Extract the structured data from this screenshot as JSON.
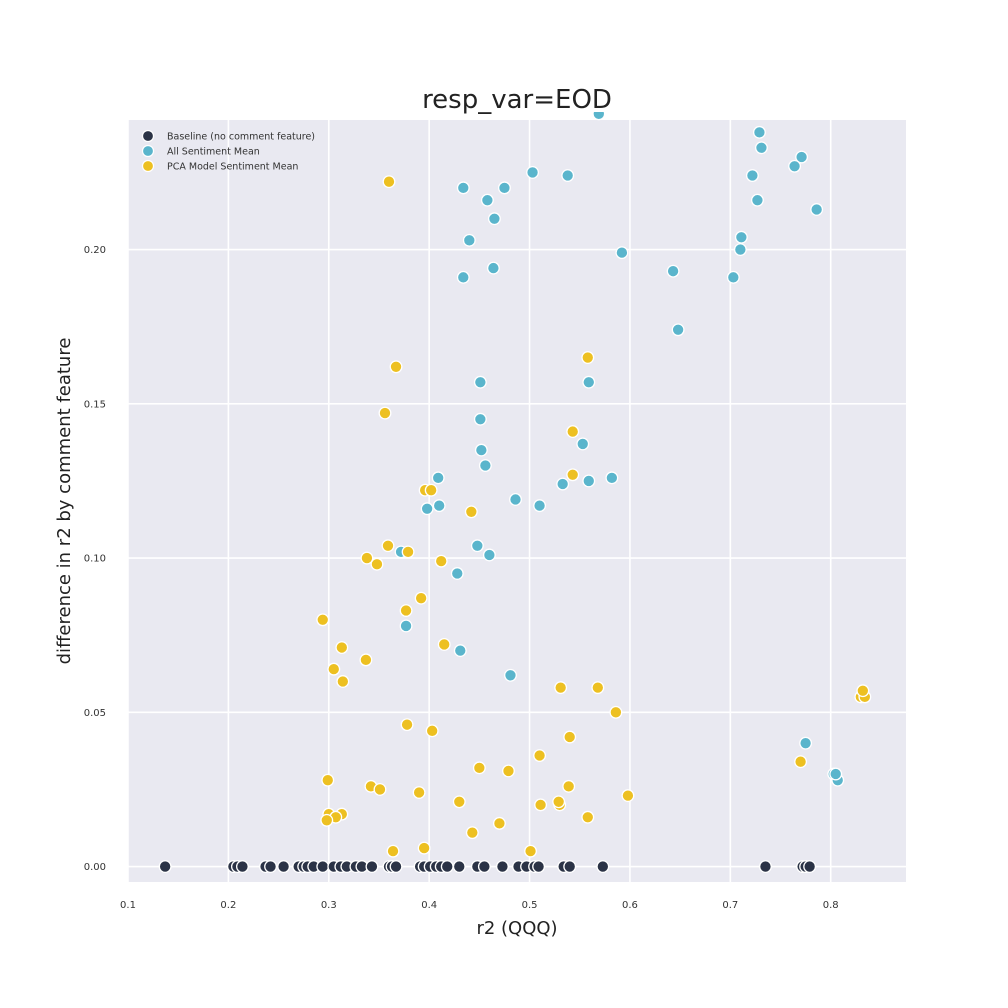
{
  "chart_data": {
    "type": "scatter",
    "title": "resp_var=EOD",
    "xlabel": "r2 (QQQ)",
    "ylabel": "difference in r2 by comment feature",
    "xlim": [
      0.1,
      0.875
    ],
    "ylim": [
      -0.005,
      0.242
    ],
    "xticks": [
      "0.1",
      "0.2",
      "0.3",
      "0.4",
      "0.5",
      "0.6",
      "0.7",
      "0.8"
    ],
    "xtick_values": [
      0.1,
      0.2,
      0.3,
      0.4,
      0.5,
      0.6,
      0.7,
      0.8
    ],
    "yticks": [
      "0.00",
      "0.05",
      "0.10",
      "0.15",
      "0.20"
    ],
    "ytick_values": [
      0.0,
      0.05,
      0.1,
      0.15,
      0.2
    ],
    "grid": true,
    "legend_position": "top-left",
    "background": "#e9e9f1",
    "series": [
      {
        "name": "Baseline (no comment feature)",
        "color": "#2b3346",
        "points": [
          [
            0.137,
            0
          ],
          [
            0.205,
            0
          ],
          [
            0.209,
            0
          ],
          [
            0.214,
            0
          ],
          [
            0.237,
            0
          ],
          [
            0.242,
            0
          ],
          [
            0.255,
            0
          ],
          [
            0.27,
            0
          ],
          [
            0.275,
            0
          ],
          [
            0.279,
            0
          ],
          [
            0.285,
            0
          ],
          [
            0.294,
            0
          ],
          [
            0.305,
            0
          ],
          [
            0.312,
            0
          ],
          [
            0.318,
            0
          ],
          [
            0.327,
            0
          ],
          [
            0.333,
            0
          ],
          [
            0.343,
            0
          ],
          [
            0.36,
            0
          ],
          [
            0.363,
            0
          ],
          [
            0.367,
            0
          ],
          [
            0.391,
            0
          ],
          [
            0.395,
            0
          ],
          [
            0.401,
            0
          ],
          [
            0.407,
            0
          ],
          [
            0.412,
            0
          ],
          [
            0.418,
            0
          ],
          [
            0.43,
            0
          ],
          [
            0.448,
            0
          ],
          [
            0.455,
            0
          ],
          [
            0.473,
            0
          ],
          [
            0.489,
            0
          ],
          [
            0.497,
            0
          ],
          [
            0.505,
            0
          ],
          [
            0.509,
            0
          ],
          [
            0.534,
            0
          ],
          [
            0.54,
            0
          ],
          [
            0.573,
            0
          ],
          [
            0.735,
            0
          ],
          [
            0.772,
            0
          ],
          [
            0.775,
            0
          ],
          [
            0.779,
            0
          ]
        ]
      },
      {
        "name": "All Sentiment Mean",
        "color": "#5ab5cc",
        "points": [
          [
            0.569,
            0.244
          ],
          [
            0.729,
            0.238
          ],
          [
            0.731,
            0.233
          ],
          [
            0.771,
            0.23
          ],
          [
            0.764,
            0.227
          ],
          [
            0.722,
            0.224
          ],
          [
            0.727,
            0.216
          ],
          [
            0.786,
            0.213
          ],
          [
            0.503,
            0.225
          ],
          [
            0.538,
            0.224
          ],
          [
            0.434,
            0.22
          ],
          [
            0.475,
            0.22
          ],
          [
            0.458,
            0.216
          ],
          [
            0.465,
            0.21
          ],
          [
            0.44,
            0.203
          ],
          [
            0.592,
            0.199
          ],
          [
            0.711,
            0.204
          ],
          [
            0.71,
            0.2
          ],
          [
            0.643,
            0.193
          ],
          [
            0.703,
            0.191
          ],
          [
            0.464,
            0.194
          ],
          [
            0.434,
            0.191
          ],
          [
            0.648,
            0.174
          ],
          [
            0.451,
            0.157
          ],
          [
            0.559,
            0.157
          ],
          [
            0.451,
            0.145
          ],
          [
            0.553,
            0.137
          ],
          [
            0.452,
            0.135
          ],
          [
            0.456,
            0.13
          ],
          [
            0.409,
            0.126
          ],
          [
            0.559,
            0.125
          ],
          [
            0.582,
            0.126
          ],
          [
            0.533,
            0.124
          ],
          [
            0.41,
            0.117
          ],
          [
            0.398,
            0.116
          ],
          [
            0.486,
            0.119
          ],
          [
            0.51,
            0.117
          ],
          [
            0.448,
            0.104
          ],
          [
            0.46,
            0.101
          ],
          [
            0.372,
            0.102
          ],
          [
            0.428,
            0.095
          ],
          [
            0.377,
            0.078
          ],
          [
            0.431,
            0.07
          ],
          [
            0.481,
            0.062
          ],
          [
            0.775,
            0.04
          ],
          [
            0.803,
            0.03
          ],
          [
            0.807,
            0.028
          ],
          [
            0.805,
            0.03
          ]
        ]
      },
      {
        "name": "PCA Model Sentiment Mean",
        "color": "#edc021",
        "points": [
          [
            0.36,
            0.222
          ],
          [
            0.558,
            0.165
          ],
          [
            0.367,
            0.162
          ],
          [
            0.356,
            0.147
          ],
          [
            0.543,
            0.141
          ],
          [
            0.543,
            0.127
          ],
          [
            0.396,
            0.122
          ],
          [
            0.402,
            0.122
          ],
          [
            0.442,
            0.115
          ],
          [
            0.359,
            0.104
          ],
          [
            0.379,
            0.102
          ],
          [
            0.338,
            0.1
          ],
          [
            0.348,
            0.098
          ],
          [
            0.412,
            0.099
          ],
          [
            0.392,
            0.087
          ],
          [
            0.377,
            0.083
          ],
          [
            0.294,
            0.08
          ],
          [
            0.415,
            0.072
          ],
          [
            0.313,
            0.071
          ],
          [
            0.337,
            0.067
          ],
          [
            0.305,
            0.064
          ],
          [
            0.314,
            0.06
          ],
          [
            0.531,
            0.058
          ],
          [
            0.568,
            0.058
          ],
          [
            0.83,
            0.055
          ],
          [
            0.834,
            0.055
          ],
          [
            0.832,
            0.057
          ],
          [
            0.586,
            0.05
          ],
          [
            0.378,
            0.046
          ],
          [
            0.403,
            0.044
          ],
          [
            0.54,
            0.042
          ],
          [
            0.51,
            0.036
          ],
          [
            0.77,
            0.034
          ],
          [
            0.45,
            0.032
          ],
          [
            0.479,
            0.031
          ],
          [
            0.299,
            0.028
          ],
          [
            0.342,
            0.026
          ],
          [
            0.539,
            0.026
          ],
          [
            0.351,
            0.025
          ],
          [
            0.39,
            0.024
          ],
          [
            0.598,
            0.023
          ],
          [
            0.43,
            0.021
          ],
          [
            0.511,
            0.02
          ],
          [
            0.53,
            0.02
          ],
          [
            0.529,
            0.021
          ],
          [
            0.3,
            0.017
          ],
          [
            0.313,
            0.017
          ],
          [
            0.307,
            0.016
          ],
          [
            0.558,
            0.016
          ],
          [
            0.298,
            0.015
          ],
          [
            0.47,
            0.014
          ],
          [
            0.443,
            0.011
          ],
          [
            0.364,
            0.005
          ],
          [
            0.395,
            0.006
          ],
          [
            0.501,
            0.005
          ]
        ]
      }
    ]
  }
}
